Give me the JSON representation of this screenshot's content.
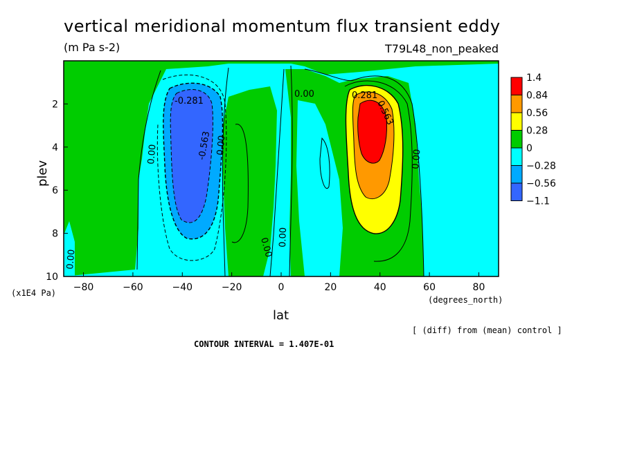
{
  "chart_data": {
    "type": "heatmap",
    "title": "vertical meridional momentum flux transient eddy",
    "units": "(m Pa s-2)",
    "dataset": "T79L48_non_peaked",
    "xlabel": "lat",
    "x_units": "(degrees_north)",
    "ylabel": "plev",
    "y_units": "(x1E4 Pa)",
    "xlim": [
      -88,
      88
    ],
    "ylim": [
      0,
      10
    ],
    "y_inverted": true,
    "x_ticks": [
      -80,
      -60,
      -40,
      -20,
      0,
      20,
      40,
      60,
      80
    ],
    "y_ticks": [
      2,
      4,
      6,
      8,
      10
    ],
    "note": "[ (diff) from (mean) control ]",
    "contour_interval": "CONTOUR INTERVAL = 1.407E-01",
    "contour_labels": [
      "-0.281",
      "-0.563",
      "0.00",
      "0.00",
      "0.00",
      "0.00",
      "0.281",
      "0.563",
      "0.00",
      "0.00",
      "0.00",
      "0.00"
    ],
    "colorbar": {
      "labels": [
        "1.4",
        "0.84",
        "0.56",
        "0.28",
        "0",
        "-0.28",
        "-0.56",
        "-1.1"
      ],
      "colors": [
        "#ff0000",
        "#ff9900",
        "#ffff00",
        "#00cc00",
        "#00ffff",
        "#00aaff",
        "#3366ff"
      ]
    },
    "regions": [
      {
        "name": "background",
        "level": "-0.28 to 0",
        "color": "#00ffff"
      },
      {
        "name": "nh-subtropical-positive",
        "level": "0 to 0.28",
        "color": "#00cc00"
      },
      {
        "name": "nh-peak",
        "level": "0.84 to 1.4",
        "color": "#ff0000",
        "center_lat": 36,
        "center_plev": 3
      }
    ]
  }
}
